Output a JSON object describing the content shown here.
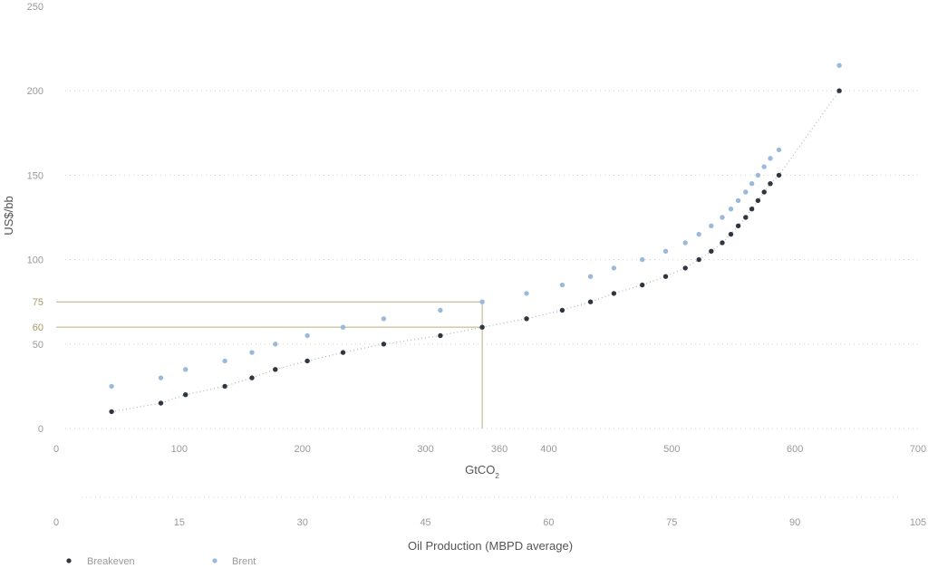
{
  "chart_data": {
    "type": "scatter",
    "ylabel": "US$/bb",
    "xlabel_primary": "GtCO",
    "xlabel_primary_subscript": "2",
    "xlabel_secondary": "Oil Production (MBPD average)",
    "xlim": [
      0,
      700
    ],
    "ylim": [
      0,
      250
    ],
    "x_ticks": [
      0,
      100,
      200,
      300,
      360,
      400,
      500,
      600,
      700
    ],
    "x_tick_labels": [
      "0",
      "100",
      "200",
      "300",
      "360",
      "400",
      "500",
      "600",
      "700"
    ],
    "y_ticks": [
      0,
      50,
      60,
      75,
      100,
      150,
      200,
      250
    ],
    "y_tick_labels": [
      "0",
      "50",
      "60",
      "75",
      "100",
      "150",
      "200",
      "250"
    ],
    "secondary_x_ticks": [
      0,
      15,
      30,
      45,
      60,
      75,
      90,
      105
    ],
    "secondary_x_tick_labels": [
      "0",
      "15",
      "30",
      "45",
      "60",
      "75",
      "90",
      "105"
    ],
    "grid": "horizontal dotted",
    "legend_position": "bottom-left",
    "reference_lines": [
      {
        "x": 346,
        "y": 60
      },
      {
        "x": 346,
        "y": 75
      }
    ],
    "series": [
      {
        "name": "Breakeven",
        "color": "#2f3640",
        "points": [
          [
            45,
            10
          ],
          [
            85,
            15
          ],
          [
            105,
            20
          ],
          [
            137,
            25
          ],
          [
            159,
            30
          ],
          [
            178,
            35
          ],
          [
            204,
            40
          ],
          [
            233,
            45
          ],
          [
            266,
            50
          ],
          [
            312,
            55
          ],
          [
            346,
            60
          ],
          [
            382,
            65
          ],
          [
            411,
            70
          ],
          [
            434,
            75
          ],
          [
            453,
            80
          ],
          [
            476,
            85
          ],
          [
            495,
            90
          ],
          [
            511,
            95
          ],
          [
            522,
            100
          ],
          [
            532,
            105
          ],
          [
            541,
            110
          ],
          [
            548,
            115
          ],
          [
            554,
            120
          ],
          [
            560,
            125
          ],
          [
            565,
            130
          ],
          [
            570,
            135
          ],
          [
            575,
            140
          ],
          [
            580,
            145
          ],
          [
            587,
            150
          ],
          [
            636,
            200
          ]
        ]
      },
      {
        "name": "Brent",
        "color": "#9bb9d9",
        "points": [
          [
            45,
            25
          ],
          [
            85,
            30
          ],
          [
            105,
            35
          ],
          [
            137,
            40
          ],
          [
            159,
            45
          ],
          [
            178,
            50
          ],
          [
            204,
            55
          ],
          [
            233,
            60
          ],
          [
            266,
            65
          ],
          [
            312,
            70
          ],
          [
            346,
            75
          ],
          [
            382,
            80
          ],
          [
            411,
            85
          ],
          [
            434,
            90
          ],
          [
            453,
            95
          ],
          [
            476,
            100
          ],
          [
            495,
            105
          ],
          [
            511,
            110
          ],
          [
            522,
            115
          ],
          [
            532,
            120
          ],
          [
            541,
            125
          ],
          [
            548,
            130
          ],
          [
            554,
            135
          ],
          [
            560,
            140
          ],
          [
            565,
            145
          ],
          [
            570,
            150
          ],
          [
            575,
            155
          ],
          [
            580,
            160
          ],
          [
            587,
            165
          ],
          [
            636,
            215
          ]
        ]
      }
    ]
  },
  "colors": {
    "axis_text": "#9a9a9a",
    "highlight": "#b8ad86",
    "trendline": "#b5b5b5",
    "grid": "#d4d4d4"
  }
}
